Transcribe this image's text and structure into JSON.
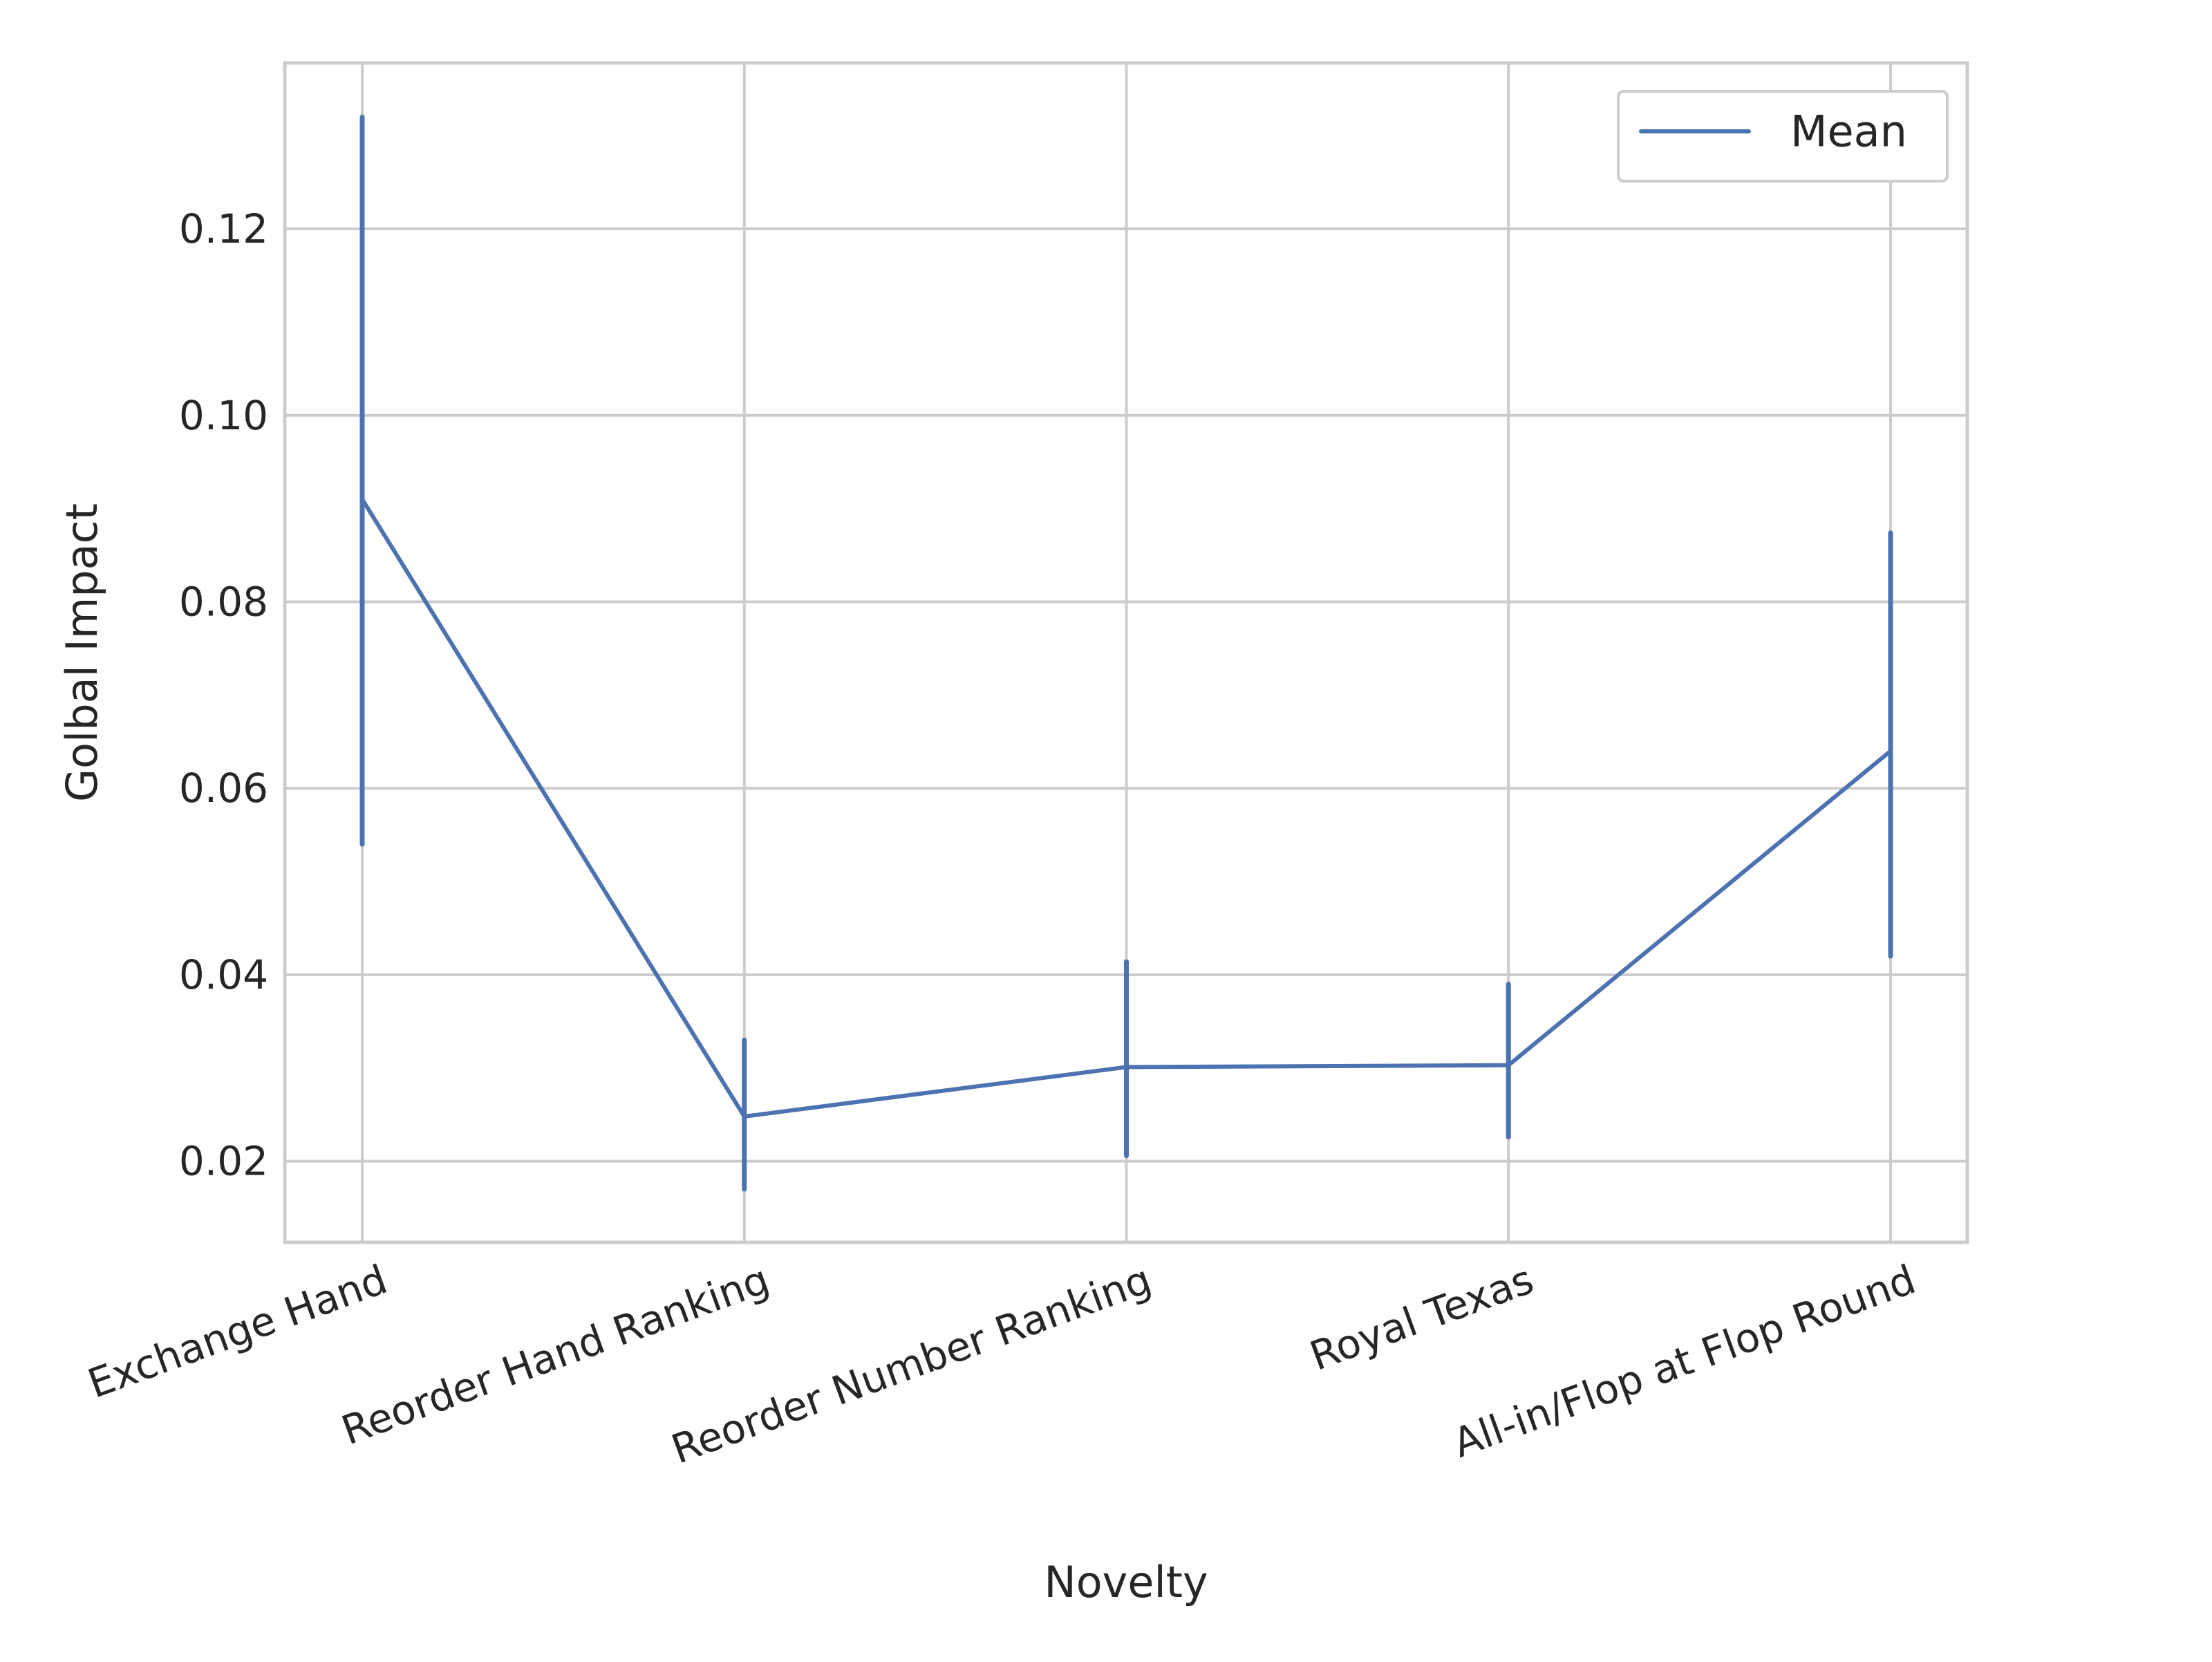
{
  "chart_data": {
    "type": "line",
    "xlabel": "Novelty",
    "ylabel": "Golbal Impact",
    "categories": [
      "Exchange Hand",
      "Reorder Hand Ranking",
      "Reorder Number Ranking",
      "Royal Texas",
      "All-in/Flop at Flop Round"
    ],
    "series": [
      {
        "name": "Mean",
        "color": "#4c72b0",
        "values": [
          0.091,
          0.0248,
          0.0301,
          0.0303,
          0.064
        ],
        "error_low": [
          0.054,
          0.017,
          0.0206,
          0.0226,
          0.042
        ],
        "error_high": [
          0.132,
          0.033,
          0.0414,
          0.039,
          0.0874
        ]
      }
    ],
    "ylim": [
      0.0113,
      0.1378
    ],
    "yticks": [
      0.02,
      0.04,
      0.06,
      0.08,
      0.1,
      0.12
    ],
    "ytick_labels": [
      "0.02",
      "0.04",
      "0.06",
      "0.08",
      "0.10",
      "0.12"
    ],
    "grid": true,
    "legend_position": "upper right",
    "x_tick_rotation": "20 degrees"
  }
}
